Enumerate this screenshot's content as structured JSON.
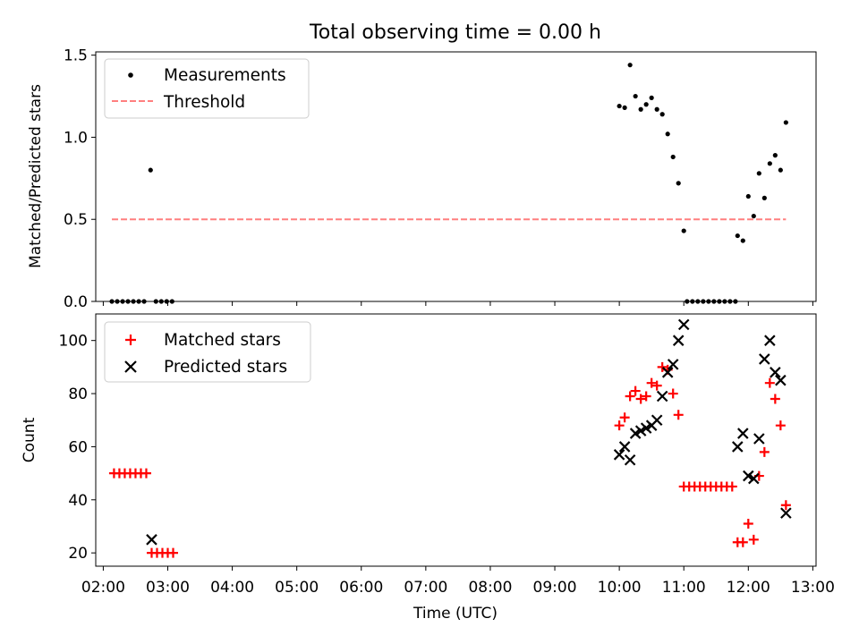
{
  "chart_data": [
    {
      "type": "scatter",
      "title": "Total observing time = 0.00 h",
      "xlabel": "",
      "ylabel": "Matched/Predicted stars",
      "xlim": [
        "01:53",
        "13:03"
      ],
      "ylim": [
        0,
        1.52
      ],
      "yticks": [
        0.0,
        0.5,
        1.0,
        1.5
      ],
      "ytick_labels": [
        "0.0",
        "0.5",
        "1.0",
        "1.5"
      ],
      "grid": false,
      "legend_position": "upper-left",
      "legend": [
        "Measurements",
        "Threshold"
      ],
      "series": [
        {
          "name": "Measurements",
          "color": "#000000",
          "marker": "dot",
          "points": [
            [
              "02:08",
              0
            ],
            [
              "02:13",
              0
            ],
            [
              "02:18",
              0
            ],
            [
              "02:23",
              0
            ],
            [
              "02:28",
              0
            ],
            [
              "02:33",
              0
            ],
            [
              "02:38",
              0
            ],
            [
              "02:44",
              0.8
            ],
            [
              "02:49",
              0
            ],
            [
              "02:54",
              0
            ],
            [
              "02:59",
              0
            ],
            [
              "03:04",
              0
            ],
            [
              "10:00",
              1.19
            ],
            [
              "10:05",
              1.18
            ],
            [
              "10:10",
              1.44
            ],
            [
              "10:15",
              1.25
            ],
            [
              "10:20",
              1.17
            ],
            [
              "10:25",
              1.2
            ],
            [
              "10:30",
              1.24
            ],
            [
              "10:35",
              1.17
            ],
            [
              "10:40",
              1.14
            ],
            [
              "10:45",
              1.02
            ],
            [
              "10:50",
              0.88
            ],
            [
              "10:55",
              0.72
            ],
            [
              "11:00",
              0.43
            ],
            [
              "11:03",
              0
            ],
            [
              "11:08",
              0
            ],
            [
              "11:13",
              0
            ],
            [
              "11:18",
              0
            ],
            [
              "11:23",
              0
            ],
            [
              "11:28",
              0
            ],
            [
              "11:33",
              0
            ],
            [
              "11:38",
              0
            ],
            [
              "11:43",
              0
            ],
            [
              "11:48",
              0
            ],
            [
              "11:50",
              0.4
            ],
            [
              "11:55",
              0.37
            ],
            [
              "12:00",
              0.64
            ],
            [
              "12:05",
              0.52
            ],
            [
              "12:10",
              0.78
            ],
            [
              "12:15",
              0.63
            ],
            [
              "12:20",
              0.84
            ],
            [
              "12:25",
              0.89
            ],
            [
              "12:30",
              0.8
            ],
            [
              "12:35",
              1.09
            ]
          ]
        },
        {
          "name": "Threshold",
          "color": "#ff7f7f",
          "style": "dashed",
          "points": [
            [
              "02:08",
              0.5
            ],
            [
              "12:35",
              0.5
            ]
          ]
        }
      ]
    },
    {
      "type": "scatter",
      "title": "",
      "xlabel": "Time (UTC)",
      "ylabel": "Count",
      "xlim": [
        "01:53",
        "13:03"
      ],
      "ylim": [
        15,
        110
      ],
      "yticks": [
        20,
        40,
        60,
        80,
        100
      ],
      "ytick_labels": [
        "20",
        "40",
        "60",
        "80",
        "100"
      ],
      "xticks": [
        "02:00",
        "03:00",
        "04:00",
        "05:00",
        "06:00",
        "07:00",
        "08:00",
        "09:00",
        "10:00",
        "11:00",
        "12:00",
        "13:00"
      ],
      "grid": false,
      "legend_position": "upper-left",
      "legend": [
        "Matched stars",
        "Predicted stars"
      ],
      "series": [
        {
          "name": "Matched stars",
          "color": "#ff0000",
          "marker": "plus",
          "points": [
            [
              "02:10",
              50
            ],
            [
              "02:15",
              50
            ],
            [
              "02:20",
              50
            ],
            [
              "02:25",
              50
            ],
            [
              "02:30",
              50
            ],
            [
              "02:35",
              50
            ],
            [
              "02:40",
              50
            ],
            [
              "02:45",
              20
            ],
            [
              "02:50",
              20
            ],
            [
              "02:55",
              20
            ],
            [
              "03:00",
              20
            ],
            [
              "03:05",
              20
            ],
            [
              "10:00",
              68
            ],
            [
              "10:05",
              71
            ],
            [
              "10:10",
              79
            ],
            [
              "10:15",
              81
            ],
            [
              "10:20",
              78
            ],
            [
              "10:25",
              79
            ],
            [
              "10:30",
              84
            ],
            [
              "10:35",
              83
            ],
            [
              "10:40",
              90
            ],
            [
              "10:45",
              89
            ],
            [
              "10:50",
              80
            ],
            [
              "10:55",
              72
            ],
            [
              "11:00",
              45
            ],
            [
              "11:05",
              45
            ],
            [
              "11:10",
              45
            ],
            [
              "11:15",
              45
            ],
            [
              "11:20",
              45
            ],
            [
              "11:25",
              45
            ],
            [
              "11:30",
              45
            ],
            [
              "11:35",
              45
            ],
            [
              "11:40",
              45
            ],
            [
              "11:45",
              45
            ],
            [
              "11:50",
              24
            ],
            [
              "11:55",
              24
            ],
            [
              "12:00",
              31
            ],
            [
              "12:05",
              25
            ],
            [
              "12:10",
              49
            ],
            [
              "12:15",
              58
            ],
            [
              "12:20",
              84
            ],
            [
              "12:25",
              78
            ],
            [
              "12:30",
              68
            ],
            [
              "12:35",
              38
            ]
          ]
        },
        {
          "name": "Predicted stars",
          "color": "#000000",
          "marker": "x",
          "points": [
            [
              "02:45",
              25
            ],
            [
              "10:00",
              57
            ],
            [
              "10:05",
              60
            ],
            [
              "10:10",
              55
            ],
            [
              "10:15",
              65
            ],
            [
              "10:20",
              66
            ],
            [
              "10:25",
              67
            ],
            [
              "10:30",
              68
            ],
            [
              "10:35",
              70
            ],
            [
              "10:40",
              79
            ],
            [
              "10:45",
              88
            ],
            [
              "10:50",
              91
            ],
            [
              "10:55",
              100
            ],
            [
              "11:00",
              106
            ],
            [
              "11:50",
              60
            ],
            [
              "11:55",
              65
            ],
            [
              "12:00",
              49
            ],
            [
              "12:05",
              48
            ],
            [
              "12:10",
              63
            ],
            [
              "12:15",
              93
            ],
            [
              "12:20",
              100
            ],
            [
              "12:25",
              88
            ],
            [
              "12:30",
              85
            ],
            [
              "12:35",
              35
            ]
          ]
        }
      ]
    }
  ]
}
